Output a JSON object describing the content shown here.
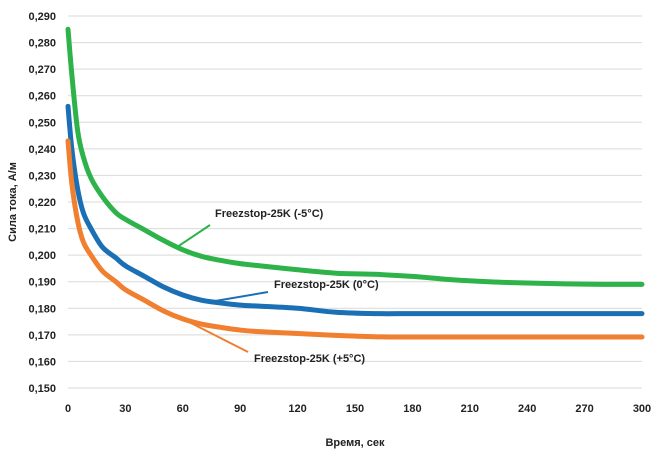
{
  "chart_data": {
    "type": "line",
    "xlabel": "Время, сек",
    "ylabel": "Сила тока, А/м",
    "xlim": [
      0,
      300
    ],
    "ylim": [
      0.15,
      0.29
    ],
    "xticks": [
      0,
      30,
      60,
      90,
      120,
      150,
      180,
      210,
      240,
      270,
      300
    ],
    "xtick_labels": [
      "0",
      "30",
      "60",
      "90",
      "120",
      "150",
      "180",
      "210",
      "240",
      "270",
      "300"
    ],
    "yticks": [
      0.15,
      0.16,
      0.17,
      0.18,
      0.19,
      0.2,
      0.21,
      0.22,
      0.23,
      0.24,
      0.25,
      0.26,
      0.27,
      0.28,
      0.29
    ],
    "ytick_labels": [
      "0,150",
      "0,160",
      "0,170",
      "0,180",
      "0,190",
      "0,200",
      "0,210",
      "0,220",
      "0,230",
      "0,240",
      "0,250",
      "0,260",
      "0,270",
      "0,280",
      "0,290"
    ],
    "grid": true,
    "series": [
      {
        "name": "Freezstop-25K (-5°C)",
        "color": "#2db34a",
        "x": [
          0,
          2,
          5,
          8,
          12,
          18,
          25,
          30,
          40,
          50,
          60,
          70,
          80,
          90,
          100,
          120,
          140,
          160,
          180,
          200,
          220,
          240,
          260,
          280,
          300
        ],
        "y": [
          0.285,
          0.268,
          0.247,
          0.237,
          0.229,
          0.222,
          0.216,
          0.2135,
          0.2095,
          0.2055,
          0.202,
          0.1995,
          0.198,
          0.1968,
          0.196,
          0.1945,
          0.1932,
          0.1928,
          0.192,
          0.1908,
          0.19,
          0.1895,
          0.1892,
          0.189,
          0.189
        ]
      },
      {
        "name": "Freezstop-25K (0°C)",
        "color": "#1a6fb5",
        "x": [
          0,
          2,
          5,
          8,
          12,
          18,
          25,
          30,
          40,
          50,
          60,
          70,
          80,
          90,
          100,
          120,
          140,
          160,
          180,
          200,
          220,
          240,
          260,
          280,
          300
        ],
        "y": [
          0.256,
          0.24,
          0.225,
          0.216,
          0.21,
          0.203,
          0.199,
          0.196,
          0.192,
          0.188,
          0.185,
          0.183,
          0.182,
          0.1812,
          0.1808,
          0.18,
          0.1785,
          0.178,
          0.178,
          0.178,
          0.178,
          0.178,
          0.178,
          0.178,
          0.178
        ]
      },
      {
        "name": "Freezstop-25K (+5°C)",
        "color": "#f07f2f",
        "x": [
          0,
          2,
          5,
          8,
          12,
          18,
          25,
          30,
          40,
          50,
          60,
          70,
          80,
          90,
          100,
          120,
          140,
          160,
          180,
          200,
          220,
          240,
          260,
          280,
          300
        ],
        "y": [
          0.243,
          0.227,
          0.213,
          0.205,
          0.2,
          0.194,
          0.19,
          0.187,
          0.183,
          0.179,
          0.176,
          0.174,
          0.1728,
          0.1718,
          0.1712,
          0.1705,
          0.1698,
          0.1693,
          0.1692,
          0.1692,
          0.1692,
          0.1692,
          0.1692,
          0.1692,
          0.1692
        ]
      }
    ]
  }
}
